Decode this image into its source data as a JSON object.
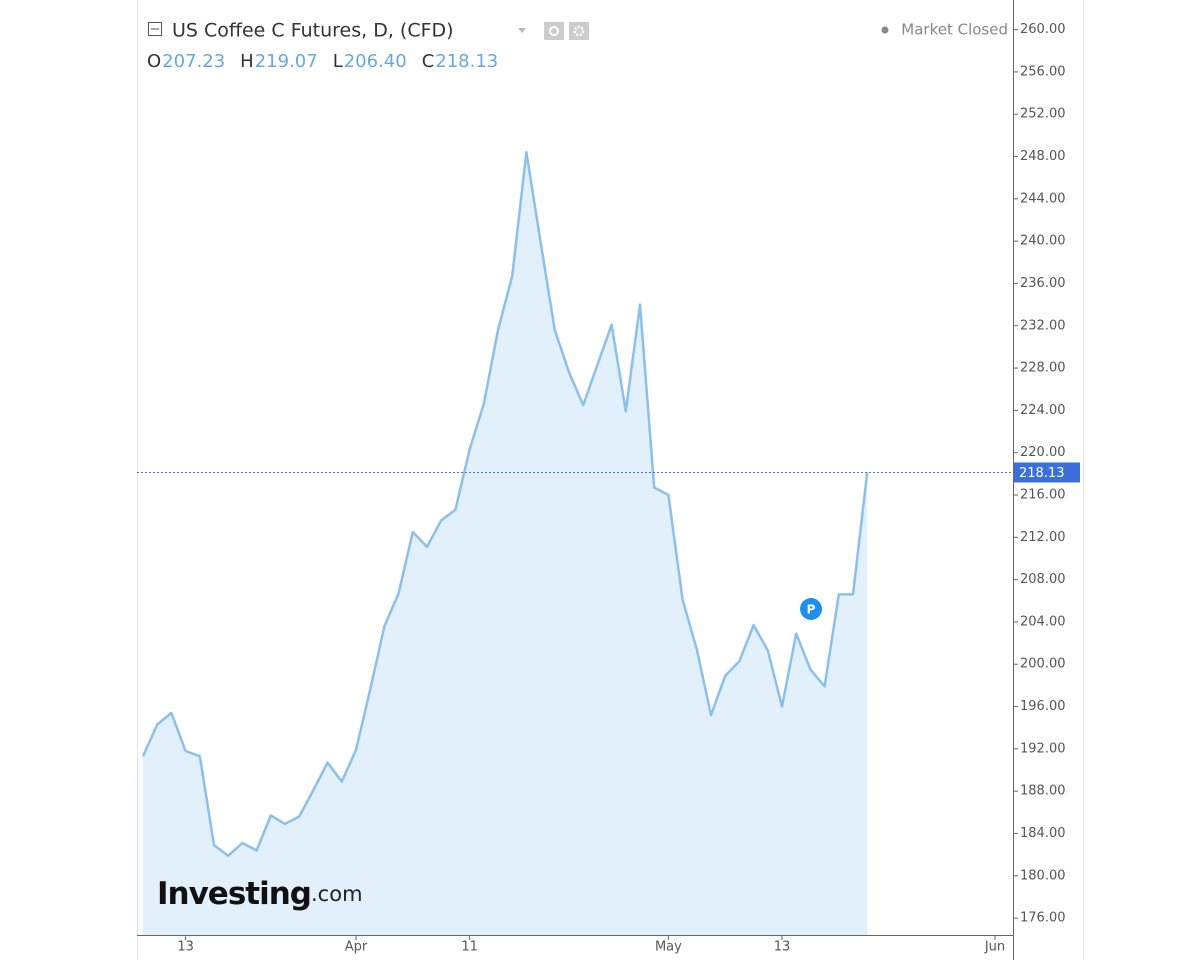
{
  "chart_data": {
    "type": "area",
    "title": "US Coffee C Futures, D, (CFD)",
    "ohlc": [
      {
        "label": "O",
        "value": 207.23
      },
      {
        "label": "H",
        "value": 219.07
      },
      {
        "label": "L",
        "value": 206.4
      },
      {
        "label": "C",
        "value": 218.13
      }
    ],
    "status": "Market Closed",
    "event_marker": "P",
    "logo": {
      "brand": "Investing",
      "suffix": ".com"
    },
    "color": "#8dbfeb",
    "fill": "#e1f0fa",
    "price_line_color": "#3b6fd9",
    "categories": [
      null,
      null,
      null,
      "13",
      null,
      null,
      null,
      null,
      null,
      null,
      null,
      null,
      null,
      null,
      null,
      "Apr",
      null,
      null,
      null,
      null,
      null,
      null,
      null,
      "11",
      null,
      null,
      null,
      null,
      null,
      null,
      null,
      null,
      null,
      null,
      null,
      null,
      null,
      "May",
      null,
      null,
      null,
      null,
      null,
      null,
      null,
      "13",
      null,
      null,
      null,
      null,
      null,
      null,
      null,
      null,
      null,
      null,
      null,
      null,
      null,
      null,
      "Jun"
    ],
    "values": [
      191.3,
      194.3,
      195.4,
      191.8,
      191.3,
      182.9,
      181.9,
      183.1,
      182.4,
      185.7,
      184.9,
      185.6,
      188.1,
      190.7,
      188.9,
      191.9,
      197.6,
      203.6,
      206.7,
      212.5,
      211.1,
      213.6,
      214.6,
      220.3,
      224.6,
      231.6,
      236.7,
      248.4,
      239.9,
      231.6,
      227.6,
      224.5,
      228.3,
      232.1,
      223.9,
      234.0,
      216.7,
      216.0,
      206.1,
      201.4,
      195.2,
      198.9,
      200.3,
      203.7,
      201.3,
      196.0,
      202.9,
      199.5,
      197.9,
      206.6,
      206.6,
      218.13,
      null,
      null,
      null,
      null,
      null,
      null,
      null,
      null,
      null
    ],
    "ylim": [
      174.4,
      262.8
    ],
    "yticks": [
      {
        "value": 176,
        "label": "176.00"
      },
      {
        "value": 180,
        "label": "180.00"
      },
      {
        "value": 184,
        "label": "184.00"
      },
      {
        "value": 188,
        "label": "188.00"
      },
      {
        "value": 192,
        "label": "192.00"
      },
      {
        "value": 196,
        "label": "196.00"
      },
      {
        "value": 200,
        "label": "200.00"
      },
      {
        "value": 204,
        "label": "204.00"
      },
      {
        "value": 208,
        "label": "208.00"
      },
      {
        "value": 212,
        "label": "212.00"
      },
      {
        "value": 216,
        "label": "216.00"
      },
      {
        "value": 220,
        "label": "220.00"
      },
      {
        "value": 224,
        "label": "224.00"
      },
      {
        "value": 228,
        "label": "228.00"
      },
      {
        "value": 232,
        "label": "232.00"
      },
      {
        "value": 236,
        "label": "236.00"
      },
      {
        "value": 240,
        "label": "240.00"
      },
      {
        "value": 244,
        "label": "244.00"
      },
      {
        "value": 248,
        "label": "248.00"
      },
      {
        "value": 252,
        "label": "252.00"
      },
      {
        "value": 256,
        "label": "256.00"
      },
      {
        "value": 260,
        "label": "260.00"
      }
    ],
    "grid": false
  }
}
